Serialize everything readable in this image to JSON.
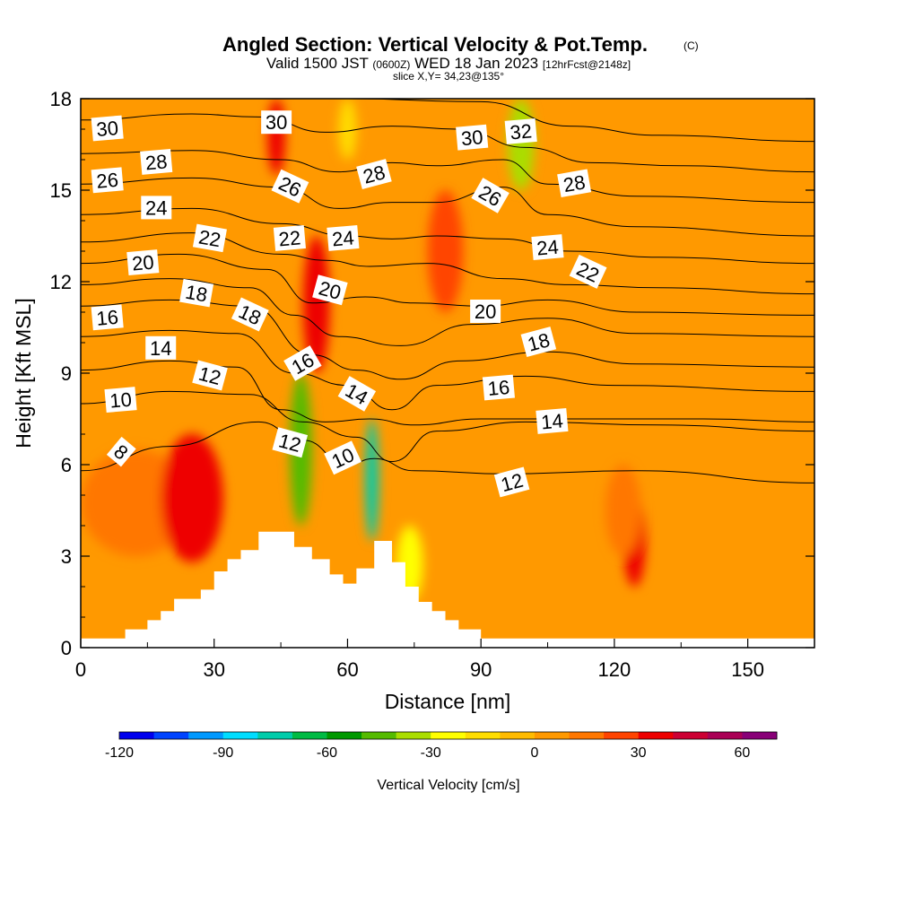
{
  "title": {
    "main": "Angled Section: Vertical Velocity & Pot.Temp.",
    "main_tag": "(C)",
    "valid_prefix": "Valid 1500 JST",
    "valid_utc": "(0600Z)",
    "valid_date": "WED 18 Jan 2023",
    "forecast": "[12hrFcst@2148z]",
    "slice": "slice X,Y= 34,23@135°"
  },
  "chart_data": {
    "type": "heatmap",
    "description_fill": "Vertical Velocity [cm/s]",
    "xlabel": "Distance [nm]",
    "ylabel": "Height [Kft MSL]",
    "xlim": [
      0,
      165
    ],
    "ylim": [
      0,
      18
    ],
    "xticks": [
      0,
      30,
      60,
      90,
      120,
      150
    ],
    "yticks": [
      0,
      3,
      6,
      9,
      12,
      15,
      18
    ],
    "colorbar": {
      "label": "Vertical Velocity [cm/s]",
      "range": [
        -120,
        70
      ],
      "step": 10,
      "tick_values": [
        -120,
        -90,
        -60,
        -30,
        0,
        30,
        60
      ],
      "colors": [
        "#0000ee",
        "#0044ff",
        "#0099ff",
        "#00ddff",
        "#00ccaa",
        "#00bb44",
        "#009900",
        "#55bb00",
        "#aadd00",
        "#ffff00",
        "#ffdd00",
        "#ffbb00",
        "#ff9900",
        "#ff7700",
        "#ff4400",
        "#ee0000",
        "#cc0033",
        "#aa0055",
        "#880077"
      ]
    },
    "background_velocity": 0,
    "velocity_cells": [
      {
        "x0": 0,
        "x1": 25,
        "y0": 3,
        "y1": 6.5,
        "w": 15
      },
      {
        "x0": 18,
        "x1": 32,
        "y0": 2.8,
        "y1": 7,
        "w": 30
      },
      {
        "x0": 50,
        "x1": 56,
        "y0": 9,
        "y1": 13.5,
        "w": 30
      },
      {
        "x0": 42,
        "x1": 46,
        "y0": 15.5,
        "y1": 18,
        "w": 35
      },
      {
        "x0": 78,
        "x1": 86,
        "y0": 11,
        "y1": 15,
        "w": 25
      },
      {
        "x0": 122,
        "x1": 127,
        "y0": 2,
        "y1": 5,
        "w": 30
      },
      {
        "x0": 118,
        "x1": 126,
        "y0": 3,
        "y1": 6,
        "w": 15
      },
      {
        "x0": 47,
        "x1": 52,
        "y0": 4,
        "y1": 9,
        "w": -50
      },
      {
        "x0": 64,
        "x1": 67,
        "y0": 3.5,
        "y1": 7.5,
        "w": -80
      },
      {
        "x0": 71,
        "x1": 77,
        "y0": 1.5,
        "y1": 4,
        "w": -25
      },
      {
        "x0": 96,
        "x1": 102,
        "y0": 15,
        "y1": 18,
        "w": -35
      },
      {
        "x0": 58,
        "x1": 62,
        "y0": 16,
        "y1": 18,
        "w": -15
      }
    ],
    "terrain": [
      [
        0,
        0.3
      ],
      [
        10,
        0.3
      ],
      [
        10,
        0.6
      ],
      [
        15,
        0.6
      ],
      [
        15,
        0.9
      ],
      [
        18,
        0.9
      ],
      [
        18,
        1.2
      ],
      [
        21,
        1.2
      ],
      [
        21,
        1.6
      ],
      [
        27,
        1.6
      ],
      [
        27,
        1.9
      ],
      [
        30,
        1.9
      ],
      [
        30,
        2.5
      ],
      [
        33,
        2.5
      ],
      [
        33,
        2.9
      ],
      [
        36,
        2.9
      ],
      [
        36,
        3.2
      ],
      [
        40,
        3.2
      ],
      [
        40,
        3.8
      ],
      [
        48,
        3.8
      ],
      [
        48,
        3.3
      ],
      [
        52,
        3.3
      ],
      [
        52,
        2.9
      ],
      [
        56,
        2.9
      ],
      [
        56,
        2.4
      ],
      [
        59,
        2.4
      ],
      [
        59,
        2.1
      ],
      [
        62,
        2.1
      ],
      [
        62,
        2.6
      ],
      [
        66,
        2.6
      ],
      [
        66,
        3.5
      ],
      [
        70,
        3.5
      ],
      [
        70,
        2.8
      ],
      [
        73,
        2.8
      ],
      [
        73,
        2.0
      ],
      [
        76,
        2.0
      ],
      [
        76,
        1.5
      ],
      [
        79,
        1.5
      ],
      [
        79,
        1.2
      ],
      [
        82,
        1.2
      ],
      [
        82,
        0.9
      ],
      [
        85,
        0.9
      ],
      [
        85,
        0.6
      ],
      [
        90,
        0.6
      ],
      [
        90,
        0.3
      ],
      [
        165,
        0.3
      ]
    ],
    "contours": [
      {
        "level": 8,
        "points": [
          [
            0,
            5.8
          ],
          [
            20,
            6.6
          ],
          [
            40,
            7.4
          ],
          [
            50,
            6.8
          ],
          [
            60,
            6.0
          ],
          [
            66,
            6.2
          ],
          [
            75,
            5.8
          ],
          [
            95,
            5.7
          ],
          [
            125,
            5.8
          ],
          [
            165,
            5.4
          ]
        ]
      },
      {
        "level": 10,
        "points": [
          [
            0,
            8.0
          ],
          [
            20,
            8.4
          ],
          [
            38,
            8.3
          ],
          [
            50,
            7.4
          ],
          [
            62,
            6.9
          ],
          [
            70,
            6.1
          ],
          [
            80,
            7.1
          ],
          [
            100,
            7.4
          ],
          [
            130,
            7.3
          ],
          [
            165,
            7.1
          ]
        ]
      },
      {
        "level": 12,
        "points": [
          [
            0,
            9.1
          ],
          [
            20,
            9.4
          ],
          [
            35,
            9.2
          ],
          [
            45,
            7.8
          ],
          [
            55,
            7.4
          ],
          [
            65,
            7.5
          ],
          [
            75,
            7.3
          ],
          [
            90,
            7.5
          ],
          [
            110,
            7.5
          ],
          [
            140,
            7.5
          ],
          [
            165,
            7.4
          ]
        ]
      },
      {
        "level": 14,
        "points": [
          [
            0,
            10.2
          ],
          [
            20,
            10.4
          ],
          [
            35,
            10.3
          ],
          [
            48,
            9.0
          ],
          [
            60,
            8.6
          ],
          [
            70,
            7.8
          ],
          [
            80,
            8.6
          ],
          [
            100,
            8.9
          ],
          [
            120,
            8.6
          ],
          [
            165,
            8.4
          ]
        ]
      },
      {
        "level": 16,
        "points": [
          [
            0,
            11.2
          ],
          [
            20,
            11.4
          ],
          [
            38,
            11.2
          ],
          [
            52,
            9.6
          ],
          [
            62,
            9.1
          ],
          [
            72,
            8.8
          ],
          [
            85,
            9.4
          ],
          [
            105,
            9.7
          ],
          [
            125,
            9.3
          ],
          [
            165,
            9.2
          ]
        ]
      },
      {
        "level": 18,
        "points": [
          [
            0,
            11.9
          ],
          [
            20,
            12.1
          ],
          [
            38,
            11.8
          ],
          [
            48,
            10.9
          ],
          [
            58,
            10.2
          ],
          [
            72,
            9.9
          ],
          [
            88,
            10.6
          ],
          [
            105,
            10.8
          ],
          [
            125,
            10.3
          ],
          [
            165,
            10.2
          ]
        ]
      },
      {
        "level": 20,
        "points": [
          [
            0,
            12.6
          ],
          [
            22,
            12.9
          ],
          [
            42,
            12.4
          ],
          [
            52,
            11.3
          ],
          [
            64,
            11.5
          ],
          [
            75,
            11.3
          ],
          [
            90,
            11.2
          ],
          [
            105,
            11.4
          ],
          [
            125,
            11.0
          ],
          [
            165,
            10.9
          ]
        ]
      },
      {
        "level": 22,
        "points": [
          [
            0,
            13.3
          ],
          [
            25,
            13.6
          ],
          [
            45,
            12.9
          ],
          [
            55,
            12.7
          ],
          [
            65,
            12.5
          ],
          [
            78,
            12.6
          ],
          [
            95,
            12.1
          ],
          [
            110,
            11.9
          ],
          [
            130,
            11.8
          ],
          [
            165,
            11.6
          ]
        ]
      },
      {
        "level": 24,
        "points": [
          [
            0,
            14.2
          ],
          [
            25,
            14.4
          ],
          [
            45,
            13.9
          ],
          [
            60,
            13.5
          ],
          [
            70,
            13.4
          ],
          [
            80,
            13.5
          ],
          [
            95,
            13.4
          ],
          [
            110,
            13.0
          ],
          [
            130,
            12.8
          ],
          [
            165,
            12.6
          ]
        ]
      },
      {
        "level": 26,
        "points": [
          [
            0,
            15.2
          ],
          [
            25,
            15.4
          ],
          [
            45,
            15.1
          ],
          [
            58,
            14.4
          ],
          [
            70,
            14.6
          ],
          [
            80,
            14.6
          ],
          [
            95,
            15.1
          ],
          [
            105,
            14.2
          ],
          [
            125,
            13.8
          ],
          [
            165,
            13.5
          ]
        ]
      },
      {
        "level": 28,
        "points": [
          [
            0,
            16.2
          ],
          [
            25,
            16.3
          ],
          [
            45,
            16.0
          ],
          [
            58,
            15.6
          ],
          [
            70,
            15.9
          ],
          [
            80,
            15.8
          ],
          [
            95,
            16.0
          ],
          [
            105,
            15.2
          ],
          [
            125,
            14.8
          ],
          [
            165,
            14.6
          ]
        ]
      },
      {
        "level": 30,
        "points": [
          [
            0,
            17.3
          ],
          [
            25,
            17.5
          ],
          [
            40,
            17.4
          ],
          [
            55,
            16.9
          ],
          [
            70,
            17.1
          ],
          [
            85,
            17.0
          ],
          [
            100,
            16.4
          ],
          [
            115,
            15.9
          ],
          [
            135,
            15.8
          ],
          [
            165,
            15.6
          ]
        ]
      },
      {
        "level": 32,
        "points": [
          [
            0,
            18.0
          ],
          [
            30,
            18.2
          ],
          [
            60,
            18.0
          ],
          [
            90,
            17.9
          ],
          [
            110,
            17.1
          ],
          [
            130,
            16.8
          ],
          [
            165,
            16.6
          ]
        ]
      }
    ],
    "contour_labels": [
      {
        "text": "30",
        "x": 6,
        "y": 17.0,
        "rot": -5
      },
      {
        "text": "28",
        "x": 17,
        "y": 15.9,
        "rot": -5
      },
      {
        "text": "26",
        "x": 6,
        "y": 15.3,
        "rot": -5
      },
      {
        "text": "24",
        "x": 17,
        "y": 14.4,
        "rot": 0
      },
      {
        "text": "22",
        "x": 29,
        "y": 13.4,
        "rot": 10
      },
      {
        "text": "20",
        "x": 14,
        "y": 12.6,
        "rot": -5
      },
      {
        "text": "18",
        "x": 26,
        "y": 11.6,
        "rot": 10
      },
      {
        "text": "16",
        "x": 6,
        "y": 10.8,
        "rot": -5
      },
      {
        "text": "14",
        "x": 18,
        "y": 9.8,
        "rot": 0
      },
      {
        "text": "12",
        "x": 29,
        "y": 8.9,
        "rot": 15
      },
      {
        "text": "10",
        "x": 9,
        "y": 8.1,
        "rot": -5
      },
      {
        "text": "8",
        "x": 9,
        "y": 6.4,
        "rot": 40
      },
      {
        "text": "30",
        "x": 44,
        "y": 17.2,
        "rot": 0
      },
      {
        "text": "26",
        "x": 47,
        "y": 15.1,
        "rot": 25
      },
      {
        "text": "22",
        "x": 47,
        "y": 13.4,
        "rot": -5
      },
      {
        "text": "18",
        "x": 38,
        "y": 10.9,
        "rot": 25
      },
      {
        "text": "16",
        "x": 50,
        "y": 9.3,
        "rot": -30
      },
      {
        "text": "12",
        "x": 47,
        "y": 6.7,
        "rot": 15
      },
      {
        "text": "10",
        "x": 59,
        "y": 6.2,
        "rot": -25
      },
      {
        "text": "14",
        "x": 62,
        "y": 8.3,
        "rot": 30
      },
      {
        "text": "28",
        "x": 66,
        "y": 15.5,
        "rot": -15
      },
      {
        "text": "24",
        "x": 59,
        "y": 13.4,
        "rot": -5
      },
      {
        "text": "20",
        "x": 56,
        "y": 11.7,
        "rot": 15
      },
      {
        "text": "30",
        "x": 88,
        "y": 16.7,
        "rot": -5
      },
      {
        "text": "32",
        "x": 99,
        "y": 16.9,
        "rot": -5
      },
      {
        "text": "26",
        "x": 92,
        "y": 14.8,
        "rot": 30
      },
      {
        "text": "28",
        "x": 111,
        "y": 15.2,
        "rot": -10
      },
      {
        "text": "24",
        "x": 105,
        "y": 13.1,
        "rot": -5
      },
      {
        "text": "22",
        "x": 114,
        "y": 12.3,
        "rot": 25
      },
      {
        "text": "20",
        "x": 91,
        "y": 11.0,
        "rot": 0
      },
      {
        "text": "18",
        "x": 103,
        "y": 10.0,
        "rot": -15
      },
      {
        "text": "16",
        "x": 94,
        "y": 8.5,
        "rot": -5
      },
      {
        "text": "14",
        "x": 106,
        "y": 7.4,
        "rot": -5
      },
      {
        "text": "12",
        "x": 97,
        "y": 5.4,
        "rot": -15
      }
    ]
  }
}
